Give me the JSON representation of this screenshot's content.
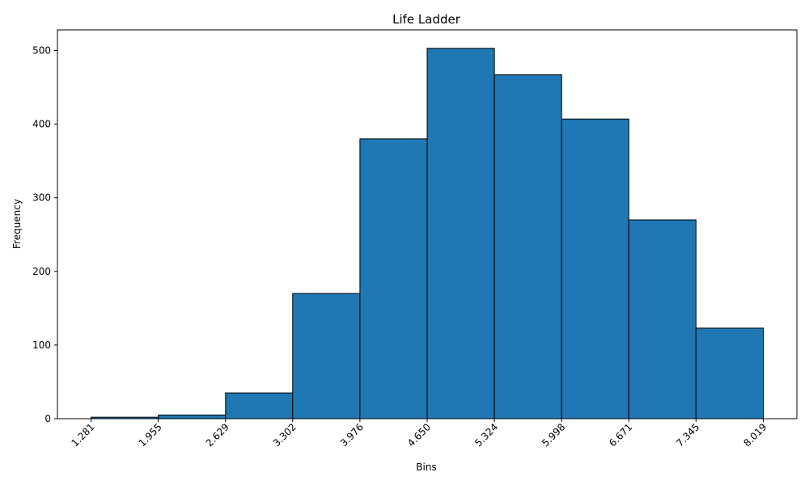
{
  "chart_data": {
    "type": "bar",
    "title": "Life Ladder",
    "xlabel": "Bins",
    "ylabel": "Frequency",
    "bin_edges": [
      "1.281",
      "1.955",
      "2.629",
      "3.302",
      "3.976",
      "4.650",
      "5.324",
      "5.998",
      "6.671",
      "7.345",
      "8.019"
    ],
    "values": [
      2,
      5,
      35,
      170,
      380,
      503,
      467,
      407,
      270,
      123
    ],
    "ylim": [
      0,
      528
    ],
    "yticks": [
      0,
      100,
      200,
      300,
      400,
      500
    ],
    "grid": false,
    "legend": "none",
    "bar_color": "#1f77b4",
    "edge_color": "#000000"
  }
}
